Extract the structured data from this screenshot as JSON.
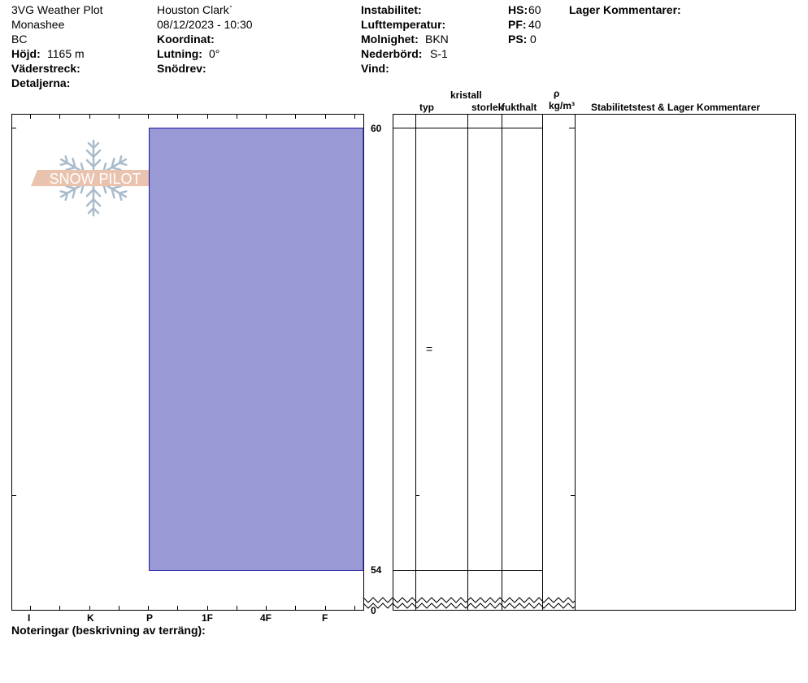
{
  "header": {
    "col1": {
      "station": "3VG Weather Plot",
      "range": "Monashee",
      "region": "BC",
      "elevation_label": "Höjd:",
      "elevation_value": "1165 m",
      "aspect_label": "Väderstreck:",
      "details_label": "Detaljerna:"
    },
    "col2": {
      "observer": "Houston Clark`",
      "datetime": "08/12/2023 - 10:30",
      "coord_label": "Koordinat:",
      "slope_label": "Lutning:",
      "slope_value": "0°",
      "drift_label": "Snödrev:"
    },
    "col3": {
      "stability_label": "Instabilitet:",
      "airtemp_label": "Lufttemperatur:",
      "sky_label": "Molnighet:",
      "sky_value": "BKN",
      "precip_label": "Nederbörd:",
      "precip_value": "S-1",
      "wind_label": "Vind:"
    },
    "col4": {
      "hs_label": "HS:",
      "hs_value": "60",
      "pf_label": "PF:",
      "pf_value": "40",
      "ps_label": "PS:",
      "ps_value": "0"
    },
    "layer_comments_label": "Lager Kommentarer:"
  },
  "logo_text": "SNOW PILOT",
  "table_headers": {
    "crystal": "kristall",
    "type": "typ",
    "size": "storlek",
    "moisture": "fukthalt",
    "rho": "ρ",
    "density_unit": "kg/m³",
    "stability": "Stabilitetstest & Lager Kommentarer"
  },
  "footer_notes_label": "Noteringar (beskrivning av terräng):",
  "colors": {
    "layer_fill": "#9999d6",
    "layer_stroke": "#1a1aa0"
  },
  "chart_data": {
    "type": "bar",
    "hardness_scale": [
      "I",
      "K",
      "P",
      "1F",
      "4F",
      "F"
    ],
    "depth_ticks": [
      "60",
      "54",
      "0"
    ],
    "layers": [
      {
        "top_cm": 60,
        "bottom_cm": 54,
        "hardness": "P",
        "grain_type": "="
      }
    ]
  }
}
